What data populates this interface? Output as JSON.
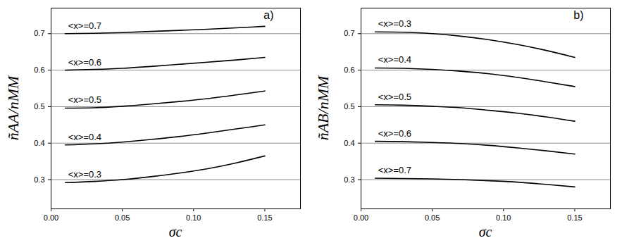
{
  "chart_data": [
    {
      "type": "line",
      "title": "a)",
      "xlabel": "σc",
      "ylabel": "ñAA/nMM",
      "xlim": [
        0,
        0.175
      ],
      "ylim": [
        0.22,
        0.77
      ],
      "xticks": [
        {
          "value": 0,
          "label": "0.00"
        },
        {
          "value": 0.05,
          "label": "0.05"
        },
        {
          "value": 0.1,
          "label": "0.10"
        },
        {
          "value": 0.15,
          "label": "0.15"
        }
      ],
      "yticks": [
        0.3,
        0.4,
        0.5,
        0.6,
        0.7
      ],
      "grid": true,
      "x": [
        0.01,
        0.03,
        0.05,
        0.07,
        0.09,
        0.11,
        0.13,
        0.15
      ],
      "series": [
        {
          "name": "<x>=0.7",
          "color": "#000000",
          "values": [
            0.7,
            0.701,
            0.703,
            0.706,
            0.709,
            0.712,
            0.716,
            0.72
          ]
        },
        {
          "name": "<x>=0.6",
          "color": "#000000",
          "values": [
            0.6,
            0.602,
            0.605,
            0.61,
            0.616,
            0.622,
            0.628,
            0.635
          ]
        },
        {
          "name": "<x>=0.5",
          "color": "#000000",
          "values": [
            0.496,
            0.497,
            0.501,
            0.507,
            0.514,
            0.522,
            0.532,
            0.543
          ]
        },
        {
          "name": "<x>=0.4",
          "color": "#000000",
          "values": [
            0.395,
            0.398,
            0.403,
            0.41,
            0.418,
            0.428,
            0.439,
            0.45
          ]
        },
        {
          "name": "<x>=0.3",
          "color": "#000000",
          "values": [
            0.292,
            0.295,
            0.3,
            0.308,
            0.318,
            0.33,
            0.346,
            0.365
          ]
        }
      ]
    },
    {
      "type": "line",
      "title": "b)",
      "xlabel": "σc",
      "ylabel": "ñAB/nMM",
      "xlim": [
        0,
        0.175
      ],
      "ylim": [
        0.22,
        0.77
      ],
      "xticks": [
        {
          "value": 0,
          "label": "0.00"
        },
        {
          "value": 0.05,
          "label": "0.05"
        },
        {
          "value": 0.1,
          "label": "0.10"
        },
        {
          "value": 0.15,
          "label": "0.15"
        }
      ],
      "yticks": [
        0.3,
        0.4,
        0.5,
        0.6,
        0.7
      ],
      "grid": true,
      "x": [
        0.01,
        0.03,
        0.05,
        0.07,
        0.09,
        0.11,
        0.13,
        0.15
      ],
      "series": [
        {
          "name": "<x>=0.3",
          "color": "#000000",
          "values": [
            0.705,
            0.704,
            0.7,
            0.693,
            0.683,
            0.67,
            0.654,
            0.635
          ]
        },
        {
          "name": "<x>=0.4",
          "color": "#000000",
          "values": [
            0.606,
            0.605,
            0.602,
            0.597,
            0.59,
            0.58,
            0.568,
            0.555
          ]
        },
        {
          "name": "<x>=0.5",
          "color": "#000000",
          "values": [
            0.505,
            0.504,
            0.501,
            0.497,
            0.49,
            0.482,
            0.472,
            0.46
          ]
        },
        {
          "name": "<x>=0.6",
          "color": "#000000",
          "values": [
            0.405,
            0.404,
            0.402,
            0.399,
            0.394,
            0.387,
            0.379,
            0.37
          ]
        },
        {
          "name": "<x>=0.7",
          "color": "#000000",
          "values": [
            0.304,
            0.303,
            0.302,
            0.3,
            0.297,
            0.293,
            0.287,
            0.28
          ]
        }
      ]
    }
  ]
}
